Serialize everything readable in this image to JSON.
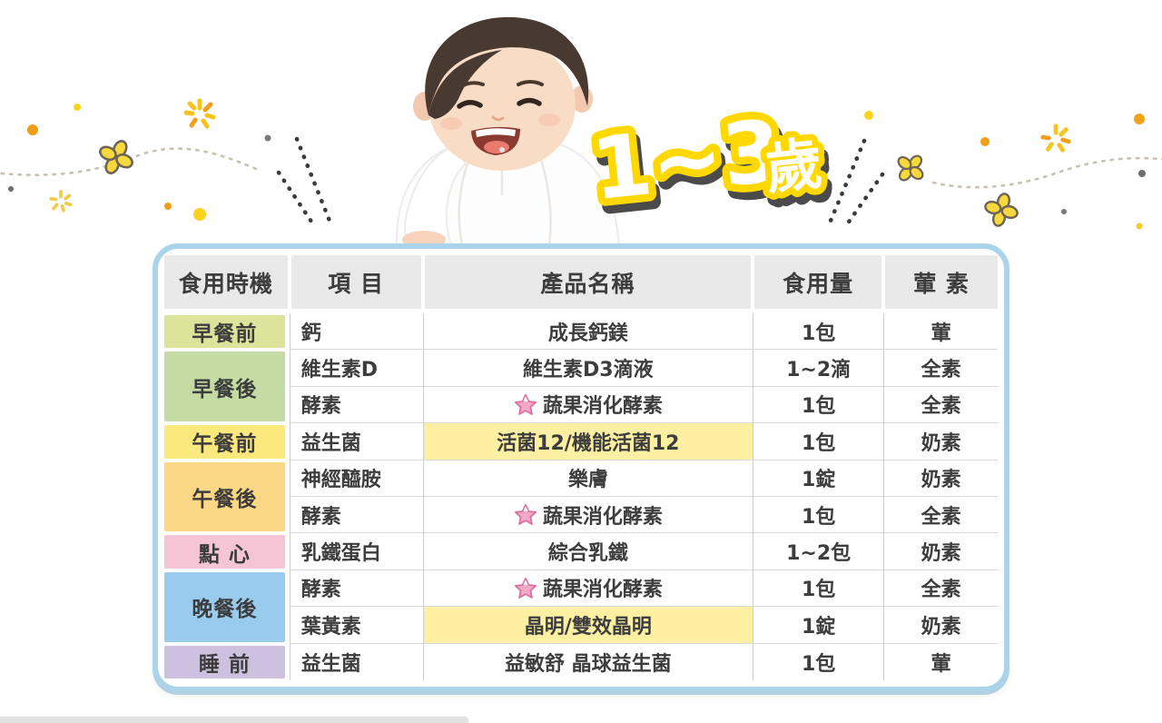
{
  "title": {
    "range": "1~3",
    "unit": "歲"
  },
  "colors": {
    "table_border": "#a9d4ea",
    "header_bg": "#e9e9e9",
    "text": "#3d3d3d",
    "highlight_yellow": "#fdf0a2",
    "star_pink": "#f3a8c4",
    "title_outline": "#ffd800",
    "title_shadow": "#4b4b4b"
  },
  "table": {
    "headers": [
      "食用時機",
      "項 目",
      "產品名稱",
      "食用量",
      "葷 素"
    ],
    "rows": [
      {
        "timing": "早餐前",
        "timing_span": 1,
        "timing_color": "#dce39a",
        "item": "鈣",
        "product": "成長鈣鎂",
        "star": false,
        "highlight": false,
        "amount": "1包",
        "diet": "葷"
      },
      {
        "timing": "早餐後",
        "timing_span": 2,
        "timing_color": "#c4dca3",
        "item": "維生素D",
        "product": "維生素D3滴液",
        "star": false,
        "highlight": false,
        "amount": "1~2滴",
        "diet": "全素"
      },
      {
        "item": "酵素",
        "product": "蔬果消化酵素",
        "star": true,
        "highlight": false,
        "amount": "1包",
        "diet": "全素"
      },
      {
        "timing": "午餐前",
        "timing_span": 1,
        "timing_color": "#fce97e",
        "item": "益生菌",
        "product": "活菌12/機能活菌12",
        "star": false,
        "highlight": true,
        "amount": "1包",
        "diet": "奶素"
      },
      {
        "timing": "午餐後",
        "timing_span": 2,
        "timing_color": "#fbd786",
        "item": "神經醯胺",
        "product": "樂膚",
        "star": false,
        "highlight": false,
        "amount": "1錠",
        "diet": "奶素"
      },
      {
        "item": "酵素",
        "product": "蔬果消化酵素",
        "star": true,
        "highlight": false,
        "amount": "1包",
        "diet": "全素"
      },
      {
        "timing": "點 心",
        "timing_span": 1,
        "timing_color": "#f6c5d5",
        "item": "乳鐵蛋白",
        "product": "綜合乳鐵",
        "star": false,
        "highlight": false,
        "amount": "1~2包",
        "diet": "奶素"
      },
      {
        "timing": "晚餐後",
        "timing_span": 2,
        "timing_color": "#98cbee",
        "item": "酵素",
        "product": "蔬果消化酵素",
        "star": true,
        "highlight": false,
        "amount": "1包",
        "diet": "全素"
      },
      {
        "item": "葉黃素",
        "product": "晶明/雙效晶明",
        "star": false,
        "highlight": true,
        "amount": "1錠",
        "diet": "奶素"
      },
      {
        "timing": "睡 前",
        "timing_span": 1,
        "timing_color": "#cec1e0",
        "item": "益生菌",
        "product": "益敏舒 晶球益生菌",
        "star": false,
        "highlight": false,
        "amount": "1包",
        "diet": "葷"
      }
    ]
  }
}
